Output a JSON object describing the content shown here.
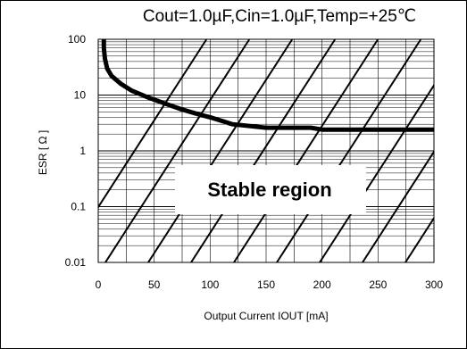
{
  "chart_data": {
    "type": "line",
    "title": "Cout=1.0µF,Cin=1.0µF,Temp=+25℃",
    "xlabel": "Output Current  IOUT  [mA]",
    "ylabel": "ESR [ Ω ]",
    "xlim": [
      0,
      300
    ],
    "ylim": [
      0.01,
      100
    ],
    "yscale": "log",
    "x_ticks": [
      "0",
      "50",
      "100",
      "150",
      "200",
      "250",
      "300"
    ],
    "y_ticks": [
      "0.01",
      "0.1",
      "1",
      "10",
      "100"
    ],
    "grid": true,
    "annotation": "Stable region",
    "series": [
      {
        "x": [
          5,
          5,
          6,
          8,
          12,
          20,
          30,
          45,
          60,
          75,
          90,
          100,
          120,
          150,
          190,
          200,
          250,
          300
        ],
        "y": [
          100,
          70,
          45,
          30,
          22,
          16,
          12,
          9,
          7,
          5.5,
          4.5,
          4,
          3,
          2.6,
          2.6,
          2.4,
          2.4,
          2.4
        ]
      }
    ]
  }
}
